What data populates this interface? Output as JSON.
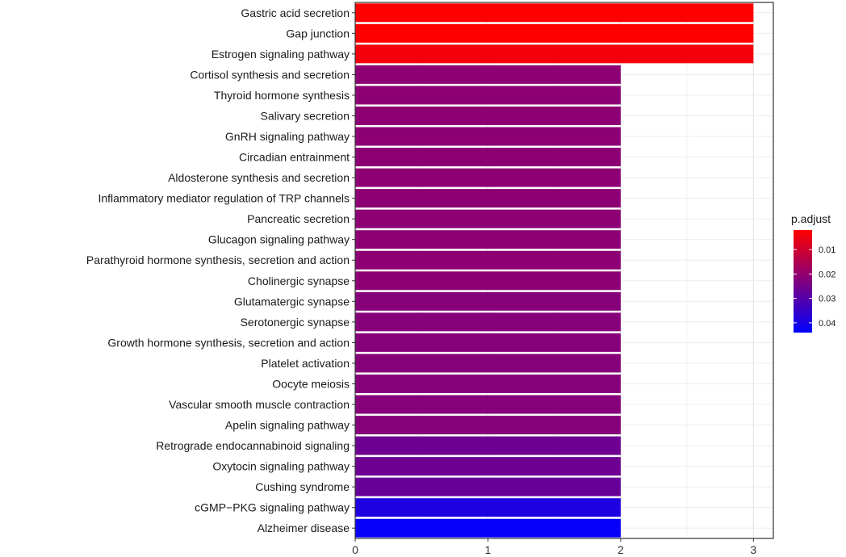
{
  "chart_data": {
    "type": "bar",
    "orientation": "horizontal",
    "categories": [
      "Gastric acid secretion",
      "Gap junction",
      "Estrogen signaling pathway",
      "Cortisol synthesis and secretion",
      "Thyroid hormone synthesis",
      "Salivary secretion",
      "GnRH signaling pathway",
      "Circadian entrainment",
      "Aldosterone synthesis and secretion",
      "Inflammatory mediator regulation of TRP channels",
      "Pancreatic secretion",
      "Glucagon signaling pathway",
      "Parathyroid hormone synthesis, secretion and action",
      "Cholinergic synapse",
      "Glutamatergic synapse",
      "Serotonergic synapse",
      "Growth hormone synthesis, secretion and action",
      "Platelet activation",
      "Oocyte meiosis",
      "Vascular smooth muscle contraction",
      "Apelin signaling pathway",
      "Retrograde endocannabinoid signaling",
      "Oxytocin signaling pathway",
      "Cushing syndrome",
      "cGMP−PKG signaling pathway",
      "Alzheimer disease"
    ],
    "values": [
      3,
      3,
      3,
      2,
      2,
      2,
      2,
      2,
      2,
      2,
      2,
      2,
      2,
      2,
      2,
      2,
      2,
      2,
      2,
      2,
      2,
      2,
      2,
      2,
      2,
      2
    ],
    "p_adjust": [
      0.002,
      0.002,
      0.004,
      0.021,
      0.021,
      0.021,
      0.021,
      0.021,
      0.021,
      0.021,
      0.021,
      0.021,
      0.021,
      0.021,
      0.022,
      0.022,
      0.022,
      0.022,
      0.022,
      0.022,
      0.022,
      0.026,
      0.026,
      0.027,
      0.039,
      0.043
    ],
    "xlim": [
      0,
      3.15
    ],
    "xticks": [
      "0",
      "1",
      "2",
      "3"
    ],
    "xtick_values": [
      0,
      1,
      2,
      3
    ],
    "xlabel": "",
    "ylabel": "",
    "title": "",
    "grid": true,
    "legend": {
      "title": "p.adjust",
      "placement": "right",
      "range": [
        0.002,
        0.044
      ],
      "ticks": [
        "0.01",
        "0.02",
        "0.03",
        "0.04"
      ],
      "tick_values": [
        0.01,
        0.02,
        0.03,
        0.04
      ],
      "color_low": "#ff0000",
      "color_high": "#0000ff"
    }
  }
}
